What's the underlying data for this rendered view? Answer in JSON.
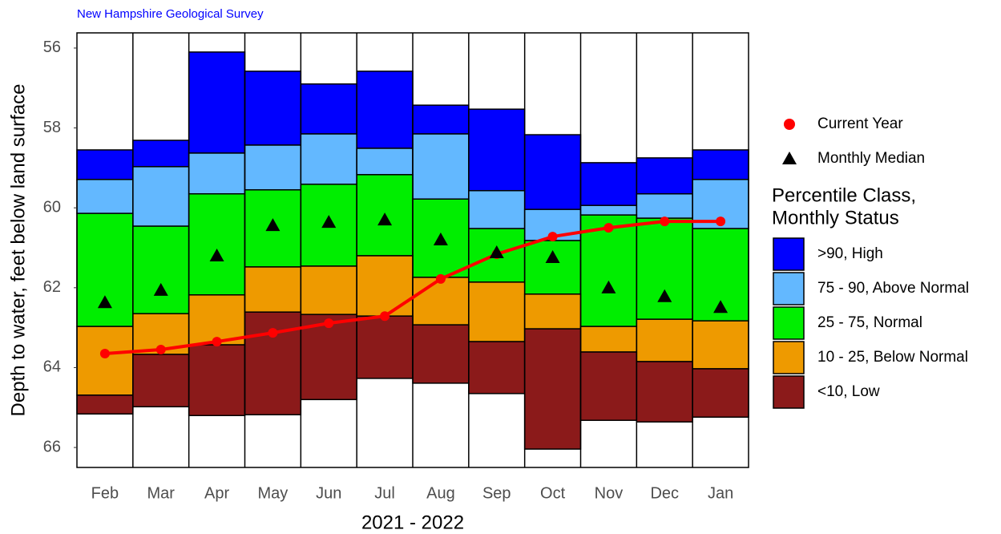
{
  "chart_data": {
    "type": "percentile_bands",
    "source": "New Hampshire Geological Survey",
    "y_label": "Depth to water, feet below land surface",
    "x_label": "2021 - 2022",
    "categories": [
      "Feb",
      "Mar",
      "Apr",
      "May",
      "Jun",
      "Jul",
      "Aug",
      "Sep",
      "Oct",
      "Nov",
      "Dec",
      "Jan"
    ],
    "ylim": [
      55.62,
      66.5
    ],
    "y_reversed": true,
    "yticks": [
      56,
      58,
      60,
      62,
      64,
      66
    ],
    "legend_title": [
      "Percentile Class,",
      "Monthly Status"
    ],
    "series": [
      {
        "name": ">90, High",
        "color": "#0000ff",
        "values": [
          [
            58.55,
            59.29
          ],
          [
            58.31,
            58.97
          ],
          [
            56.1,
            58.63
          ],
          [
            56.58,
            58.43
          ],
          [
            56.9,
            58.15
          ],
          [
            56.58,
            58.51
          ],
          [
            57.43,
            58.15
          ],
          [
            57.53,
            59.57
          ],
          [
            58.17,
            60.04
          ],
          [
            58.87,
            59.94
          ],
          [
            58.75,
            59.65
          ],
          [
            58.55,
            59.29
          ]
        ]
      },
      {
        "name": "75 - 90, Above Normal",
        "color": "#63b8ff",
        "values": [
          [
            59.29,
            60.14
          ],
          [
            58.97,
            60.46
          ],
          [
            58.63,
            59.65
          ],
          [
            58.43,
            59.55
          ],
          [
            58.15,
            59.41
          ],
          [
            58.51,
            59.17
          ],
          [
            58.15,
            59.78
          ],
          [
            59.57,
            60.52
          ],
          [
            60.04,
            60.82
          ],
          [
            59.94,
            60.18
          ],
          [
            59.65,
            60.26
          ],
          [
            59.29,
            60.52
          ]
        ]
      },
      {
        "name": "25 - 75, Normal",
        "color": "#00ee00",
        "values": [
          [
            60.14,
            62.97
          ],
          [
            60.46,
            62.65
          ],
          [
            59.65,
            62.18
          ],
          [
            59.55,
            61.48
          ],
          [
            59.41,
            61.46
          ],
          [
            59.17,
            61.2
          ],
          [
            59.78,
            61.74
          ],
          [
            60.52,
            61.86
          ],
          [
            60.82,
            62.16
          ],
          [
            60.18,
            62.97
          ],
          [
            60.26,
            62.79
          ],
          [
            60.52,
            62.83
          ]
        ]
      },
      {
        "name": "10 - 25, Below Normal",
        "color": "#ee9a00",
        "values": [
          [
            62.97,
            64.69
          ],
          [
            62.65,
            63.67
          ],
          [
            62.18,
            63.43
          ],
          [
            61.48,
            62.61
          ],
          [
            61.46,
            62.67
          ],
          [
            61.2,
            62.71
          ],
          [
            61.74,
            62.93
          ],
          [
            61.86,
            63.35
          ],
          [
            62.16,
            63.03
          ],
          [
            62.97,
            63.61
          ],
          [
            62.79,
            63.85
          ],
          [
            62.83,
            64.03
          ]
        ]
      },
      {
        "name": "<10, Low",
        "color": "#8b1a1a",
        "values": [
          [
            64.69,
            65.16
          ],
          [
            63.67,
            64.98
          ],
          [
            63.43,
            65.2
          ],
          [
            62.61,
            65.18
          ],
          [
            62.67,
            64.8
          ],
          [
            62.71,
            64.27
          ],
          [
            62.93,
            64.39
          ],
          [
            63.35,
            64.65
          ],
          [
            63.03,
            66.04
          ],
          [
            63.61,
            65.32
          ],
          [
            63.85,
            65.36
          ],
          [
            64.03,
            65.24
          ]
        ]
      }
    ],
    "lines": [
      {
        "name": "Current Year",
        "color": "#ff0000",
        "marker": "circle",
        "connected": true,
        "values": [
          63.65,
          63.55,
          63.35,
          63.13,
          62.89,
          62.71,
          61.78,
          61.16,
          60.72,
          60.5,
          60.34,
          60.34
        ]
      },
      {
        "name": "Monthly Median",
        "color": "#000000",
        "marker": "triangle",
        "connected": false,
        "values": [
          62.37,
          62.06,
          61.2,
          60.44,
          60.36,
          60.3,
          60.8,
          61.12,
          61.24,
          62.0,
          62.22,
          62.49
        ]
      }
    ]
  }
}
